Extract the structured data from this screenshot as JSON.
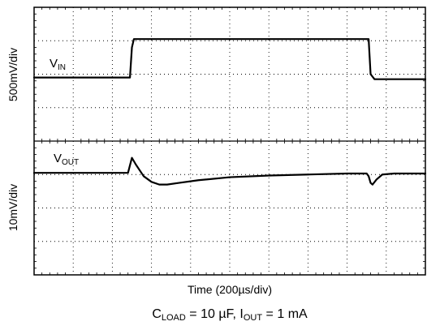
{
  "chart_data": {
    "type": "line",
    "xlabel": "Time (200µs/div)",
    "condition": {
      "c_load_prefix": "C",
      "c_load_sub": "LOAD",
      "c_load_value": " = 10 µF, I",
      "i_out_sub": "OUT",
      "i_out_value": " = 1 mA"
    },
    "x_divisions": 10,
    "panels": [
      {
        "name_main": "V",
        "name_sub": "IN",
        "ylabel": "500mV/div",
        "y_divisions": 4,
        "x": [
          0,
          2.45,
          2.5,
          2.55,
          8.55,
          8.6,
          8.7,
          10
        ],
        "y": [
          1.9,
          1.9,
          2.8,
          3.05,
          3.05,
          2.0,
          1.85,
          1.85
        ]
      },
      {
        "name_main": "V",
        "name_sub": "OUT",
        "ylabel": "10mV/div",
        "y_divisions": 4,
        "x": [
          0,
          2.4,
          2.5,
          2.6,
          2.8,
          3.0,
          3.2,
          3.4,
          3.7,
          4.2,
          5.0,
          6.0,
          7.0,
          8.0,
          8.5,
          8.55,
          8.6,
          8.65,
          8.75,
          8.9,
          9.2,
          10
        ],
        "y": [
          3.05,
          3.05,
          3.5,
          3.3,
          2.95,
          2.78,
          2.7,
          2.7,
          2.75,
          2.83,
          2.92,
          2.97,
          3.0,
          3.03,
          3.03,
          2.95,
          2.75,
          2.7,
          2.85,
          3.0,
          3.03,
          3.03
        ]
      }
    ]
  }
}
